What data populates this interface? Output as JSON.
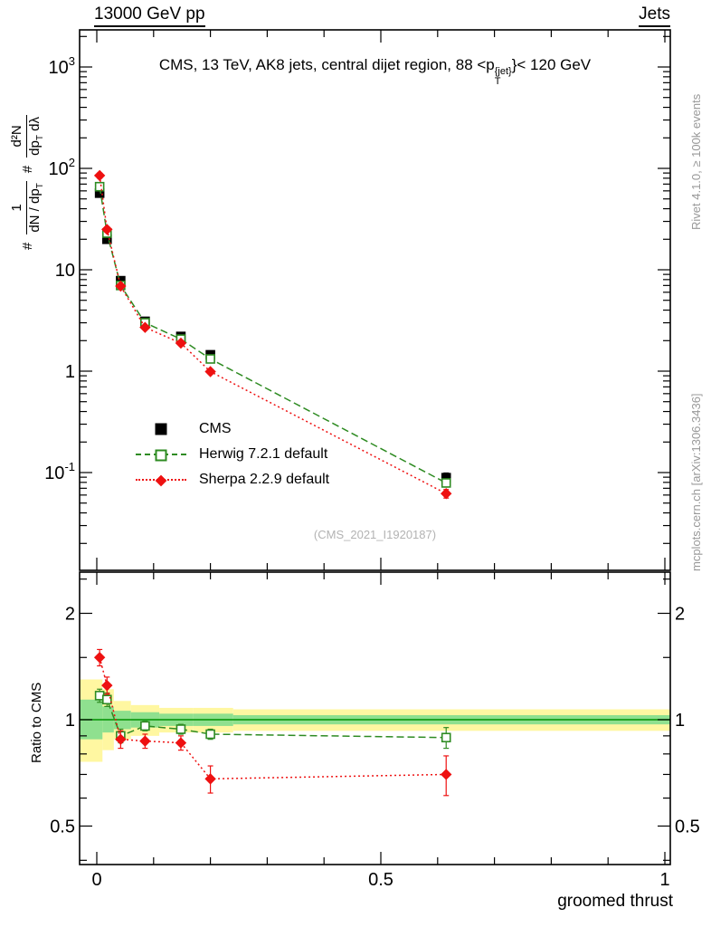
{
  "header": {
    "left": "13000 GeV pp",
    "right": "Jets"
  },
  "title": {
    "pre": "CMS, 13 TeV, AK8 jets, central dijet region, 88 <p",
    "sup": "{jet}",
    "sub": "T",
    "post": "}< 120 GeV"
  },
  "side_notes": {
    "top": "Rivet 4.1.0, ≥ 100k events",
    "bottom": "mcplots.cern.ch [arXiv:1306.3436]"
  },
  "watermark": "(CMS_2021_I1920187)",
  "axes": {
    "xlabel": "groomed thrust",
    "ratio_ylabel": "Ratio to CMS",
    "ylabel_parts": {
      "hash1": "#",
      "f1num": "1",
      "f1den_a": "dN / dp",
      "f1den_b": "T",
      "hash2": "#",
      "f2num": "d²N",
      "f2den_a": "dp",
      "f2den_b": "T",
      "f2den_c": " dλ"
    }
  },
  "chart_data": {
    "type": "line",
    "title": "CMS, 13 TeV, AK8 jets, central dijet region, 88 < pT(jet) < 120 GeV",
    "xlabel": "groomed thrust",
    "ylabel": "# 1/(dN/dpT) d2N/(dpT dLambda)",
    "ratio_ylabel": "Ratio to CMS",
    "x_range": [
      0,
      1
    ],
    "y_scale": "log",
    "ylim": [
      0.011,
      2300
    ],
    "ratio_scale": "log2",
    "ratio_ylim": [
      0.39,
      2.6
    ],
    "x": [
      0.005,
      0.018,
      0.042,
      0.085,
      0.148,
      0.2,
      0.615
    ],
    "series": [
      {
        "name": "CMS",
        "color": "#000000",
        "marker": "square",
        "fill": "filled",
        "line": "none",
        "values": [
          57,
          20,
          7.8,
          3.1,
          2.2,
          1.45,
          0.089
        ],
        "err": [
          4,
          1.5,
          0.5,
          0.2,
          0.12,
          0.1,
          0.01
        ]
      },
      {
        "name": "Herwig 7.2.1 default",
        "color": "#2e8b22",
        "marker": "square",
        "fill": "open",
        "line": "dashed",
        "values": [
          66,
          23,
          7.0,
          3.0,
          2.07,
          1.32,
          0.079
        ],
        "err": [
          3,
          1,
          0.3,
          0.12,
          0.08,
          0.05,
          0.007
        ],
        "ratio": [
          1.17,
          1.14,
          0.9,
          0.96,
          0.94,
          0.91,
          0.89
        ],
        "ratio_err": [
          0.05,
          0.05,
          0.04,
          0.03,
          0.03,
          0.03,
          0.06
        ]
      },
      {
        "name": "Sherpa 2.2.9 default",
        "color": "#ee1111",
        "marker": "diamond",
        "fill": "filled",
        "line": "dotted",
        "values": [
          85,
          25,
          6.9,
          2.7,
          1.89,
          0.99,
          0.062
        ],
        "err": [
          5,
          1.5,
          0.3,
          0.12,
          0.08,
          0.05,
          0.006
        ],
        "ratio": [
          1.5,
          1.25,
          0.88,
          0.87,
          0.86,
          0.68,
          0.7
        ],
        "ratio_err": [
          0.08,
          0.07,
          0.05,
          0.04,
          0.04,
          0.06,
          0.09
        ]
      }
    ],
    "ratio_bands": {
      "edges": [
        0,
        0.01,
        0.03,
        0.06,
        0.11,
        0.17,
        0.24,
        1.0
      ],
      "yellow_lo": [
        0.76,
        0.82,
        0.88,
        0.9,
        0.92,
        0.92,
        0.93
      ],
      "yellow_hi": [
        1.3,
        1.22,
        1.13,
        1.1,
        1.08,
        1.08,
        1.07
      ],
      "green_lo": [
        0.88,
        0.92,
        0.94,
        0.95,
        0.96,
        0.96,
        0.97
      ],
      "green_hi": [
        1.14,
        1.09,
        1.06,
        1.05,
        1.04,
        1.04,
        1.03
      ]
    },
    "colors": {
      "band_yellow": "#fff7a1",
      "band_green": "#8fe08f",
      "ratio_one_line": "#009000",
      "frame": "#000000"
    },
    "ticks": {
      "x_major": [
        0,
        0.5,
        1
      ],
      "x_labels": [
        "0",
        "0.5",
        "1"
      ],
      "x_minor_step": 0.1,
      "y_major": [
        {
          "v": 1000,
          "base": "10",
          "exp": "3"
        },
        {
          "v": 100,
          "base": "10",
          "exp": "2"
        },
        {
          "v": 10,
          "base": "10",
          "exp": ""
        },
        {
          "v": 1,
          "base": "1",
          "exp": ""
        },
        {
          "v": 0.1,
          "base": "10",
          "exp": "-1"
        }
      ],
      "ratio_major": [
        {
          "v": 2,
          "label": "2"
        },
        {
          "v": 1,
          "label": "1"
        },
        {
          "v": 0.5,
          "label": "0.5"
        }
      ],
      "ratio_minor": [
        2.5,
        1.5,
        0.9,
        0.8,
        0.7,
        0.6,
        0.4
      ]
    }
  }
}
